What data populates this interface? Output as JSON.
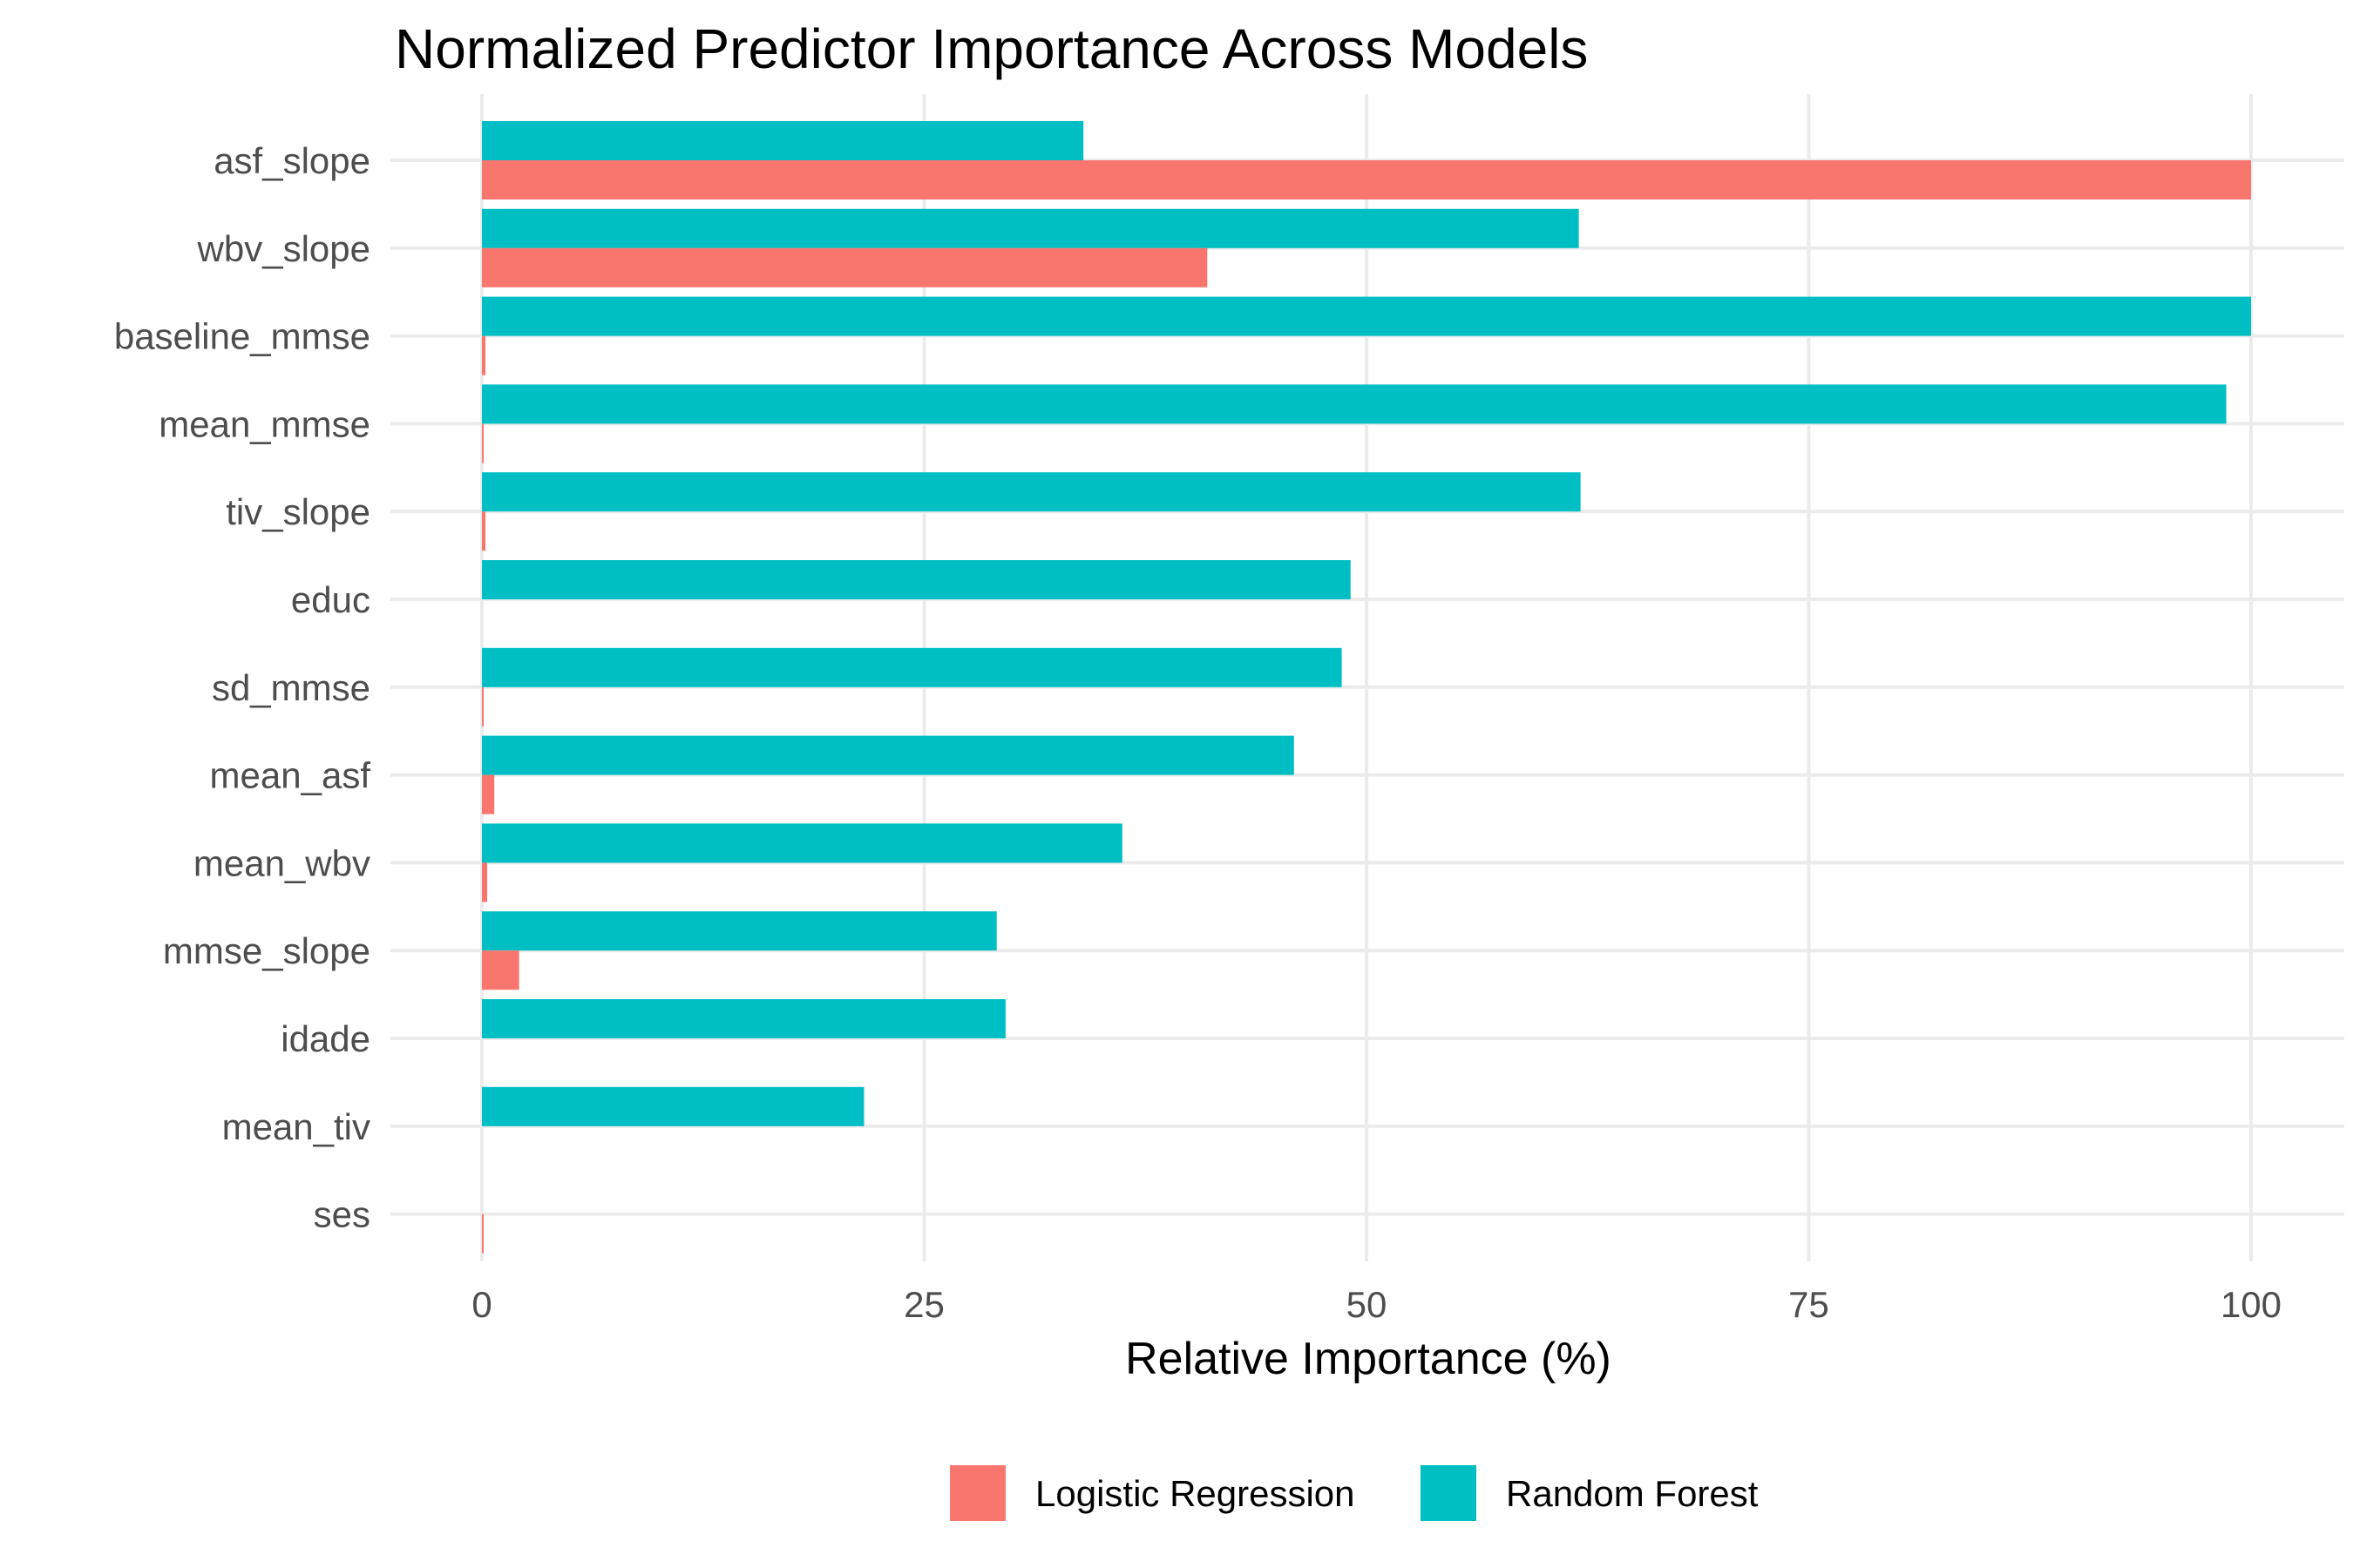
{
  "chart_data": {
    "type": "bar",
    "orientation": "horizontal",
    "title": "Normalized Predictor Importance Across Models",
    "xlabel": "Relative Importance (%)",
    "ylabel": "",
    "xlim": [
      -5,
      105
    ],
    "xticks": [
      0,
      25,
      50,
      75,
      100
    ],
    "grid": true,
    "legend_position": "bottom",
    "categories": [
      "asf_slope",
      "wbv_slope",
      "baseline_mmse",
      "mean_mmse",
      "tiv_slope",
      "educ",
      "sd_mmse",
      "mean_asf",
      "mean_wbv",
      "mmse_slope",
      "idade",
      "mean_tiv",
      "ses"
    ],
    "series": [
      {
        "name": "Logistic Regression",
        "color": "#F8766D",
        "values": [
          100,
          41,
          0.2,
          0.1,
          0.2,
          0,
          0.1,
          0.7,
          0.3,
          2.1,
          0,
          0,
          0.1
        ]
      },
      {
        "name": "Random Forest",
        "color": "#00BFC4",
        "values": [
          34,
          62,
          100,
          98.6,
          62.1,
          49.1,
          48.6,
          45.9,
          36.2,
          29.1,
          29.6,
          21.6,
          0
        ]
      }
    ]
  }
}
